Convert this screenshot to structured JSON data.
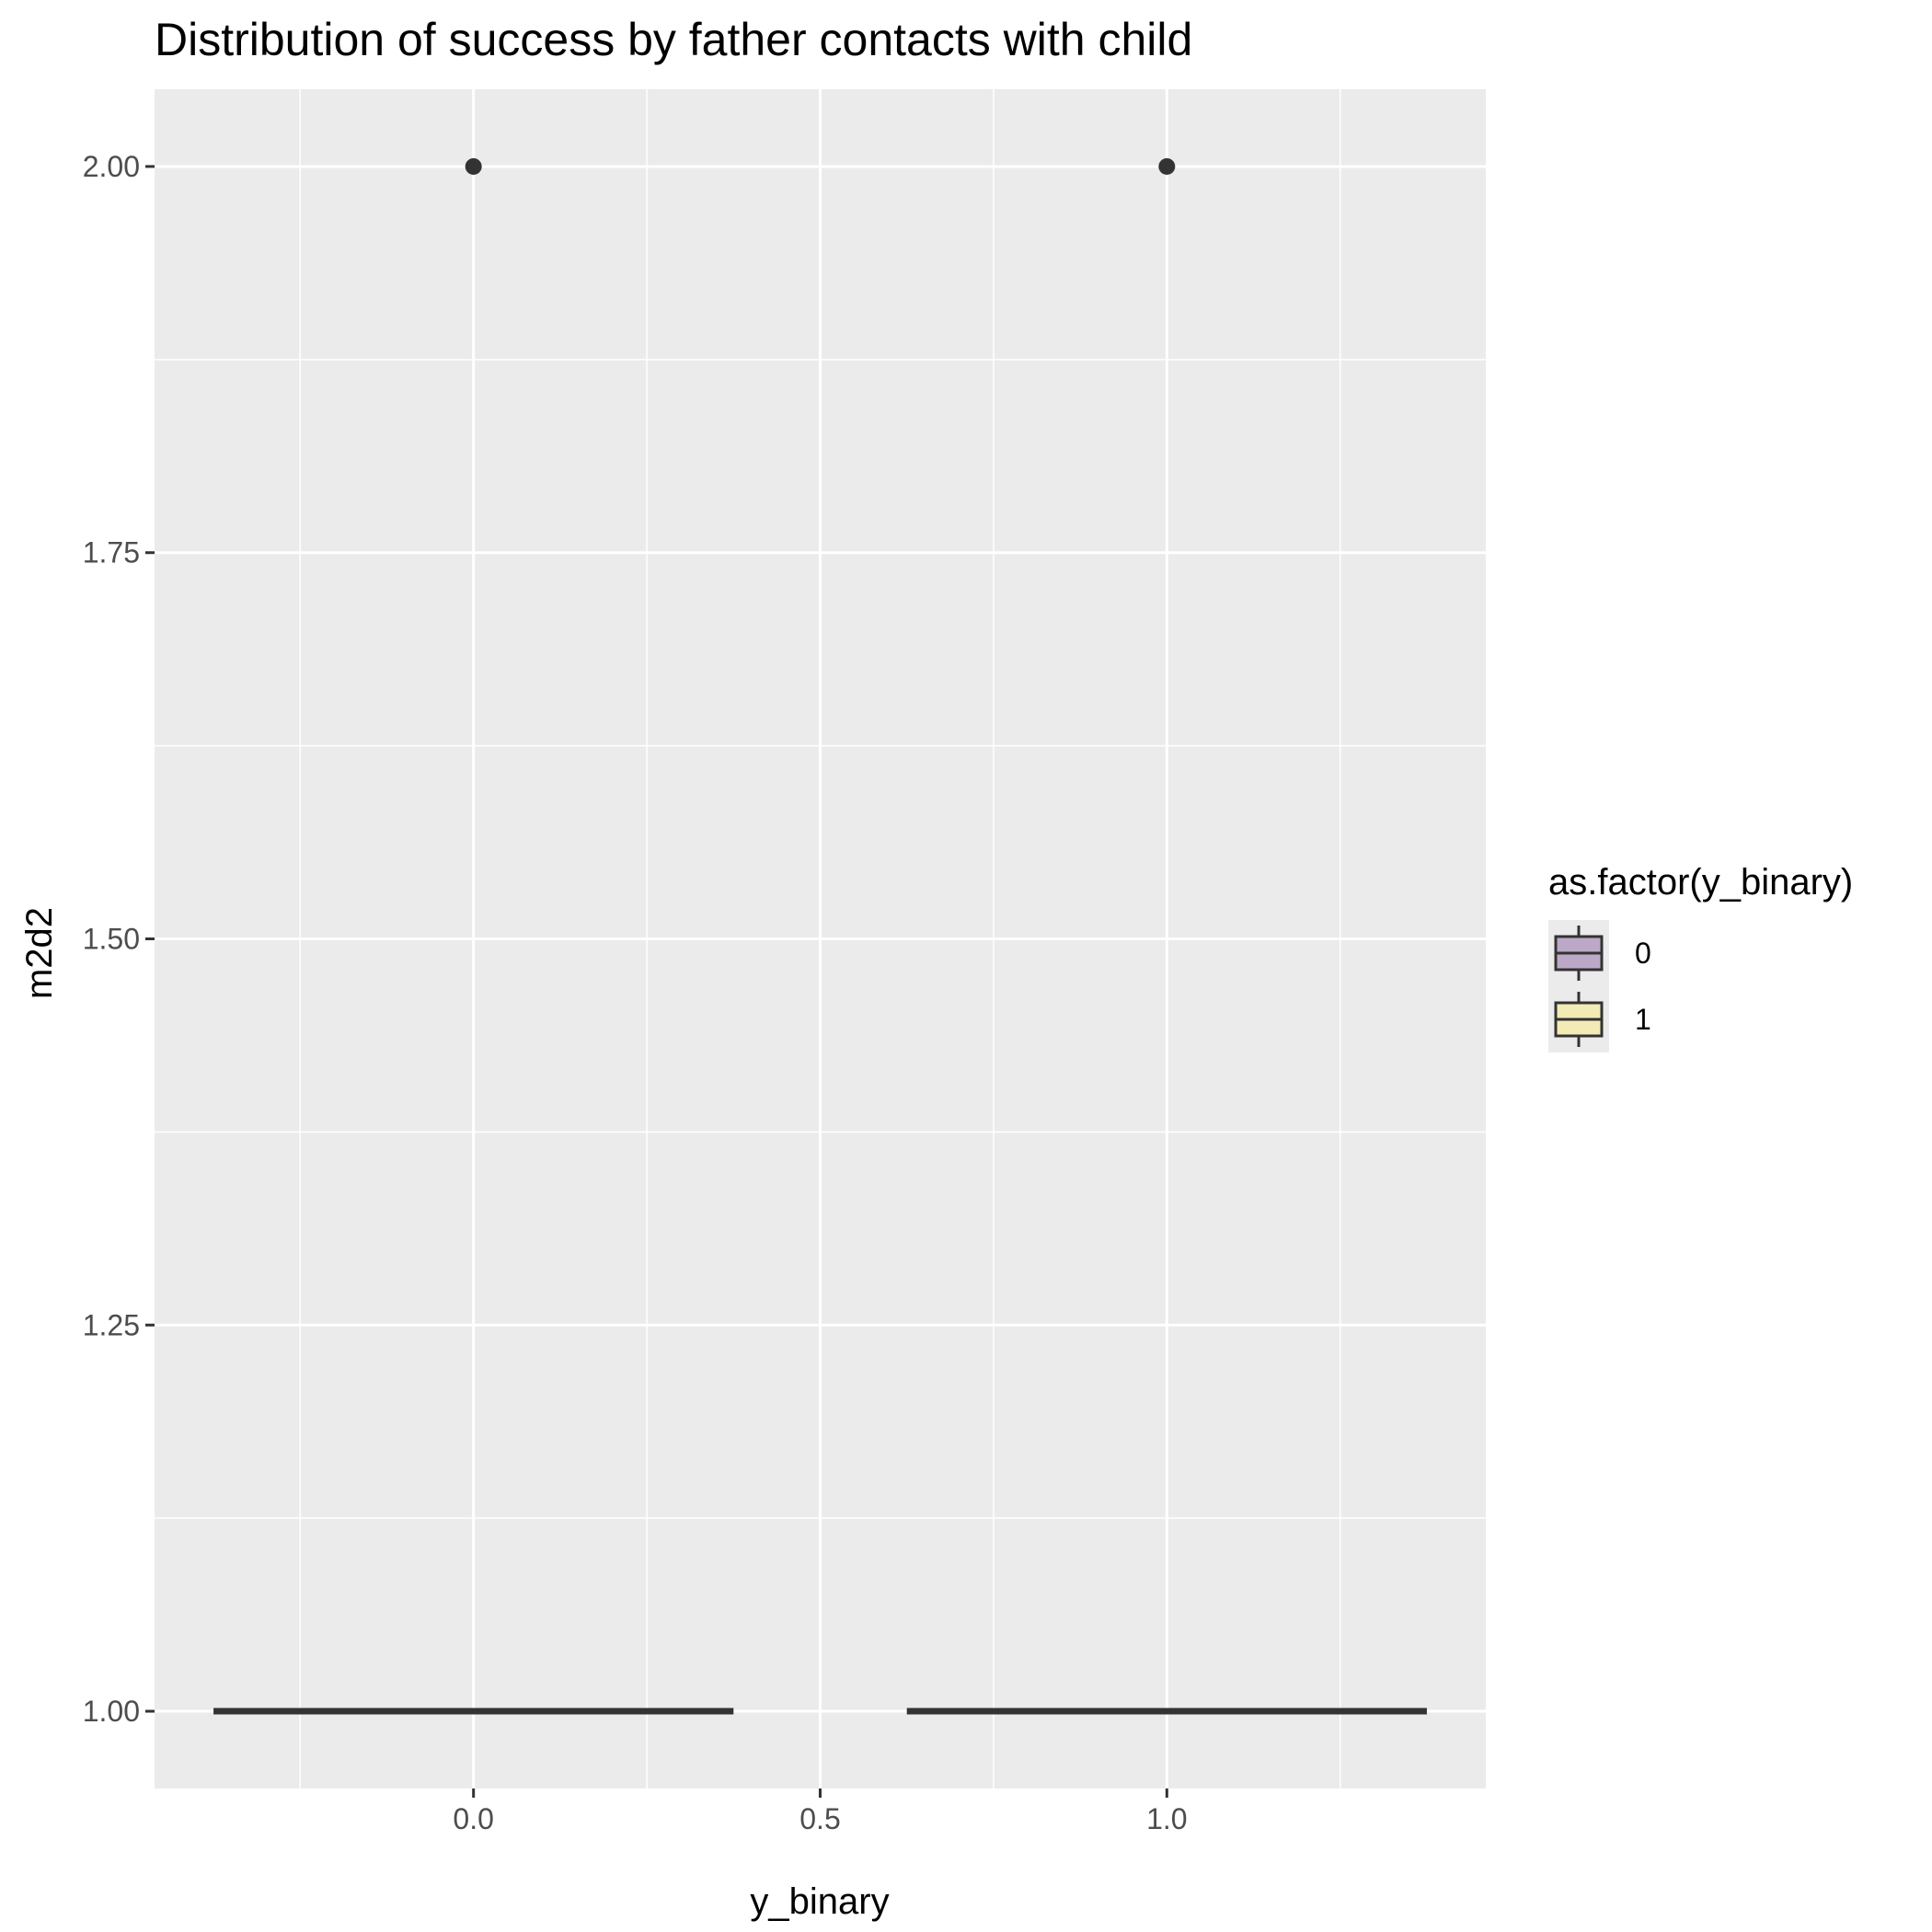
{
  "chart_data": {
    "type": "boxplot",
    "title": "Distribution of success by father contacts with child",
    "xlabel": "y_binary",
    "ylabel": "m2d2",
    "xlim": [
      -0.46,
      1.46
    ],
    "ylim": [
      0.95,
      2.05
    ],
    "x_ticks": [
      0.0,
      0.5,
      1.0
    ],
    "x_tick_labels": [
      "0.0",
      "0.5",
      "1.0"
    ],
    "x_minor": [
      -0.25,
      0.25,
      0.75,
      1.25
    ],
    "y_ticks": [
      1.0,
      1.25,
      1.5,
      1.75,
      2.0
    ],
    "y_tick_labels": [
      "1.00",
      "1.25",
      "1.50",
      "1.75",
      "2.00"
    ],
    "y_minor": [
      1.125,
      1.375,
      1.625,
      1.875
    ],
    "grid": true,
    "legend": {
      "title": "as.factor(y_binary)",
      "position": "right",
      "entries": [
        {
          "label": "0",
          "color": "#bca9c7"
        },
        {
          "label": "1",
          "color": "#f2ebb5"
        }
      ]
    },
    "series": [
      {
        "name": "0",
        "x": 0.0,
        "width": 0.75,
        "min": 1.0,
        "q1": 1.0,
        "median": 1.0,
        "q3": 1.0,
        "max": 1.0,
        "outliers": [
          2.0
        ]
      },
      {
        "name": "1",
        "x": 1.0,
        "width": 0.75,
        "min": 1.0,
        "q1": 1.0,
        "median": 1.0,
        "q3": 1.0,
        "max": 1.0,
        "outliers": [
          2.0
        ]
      }
    ]
  }
}
